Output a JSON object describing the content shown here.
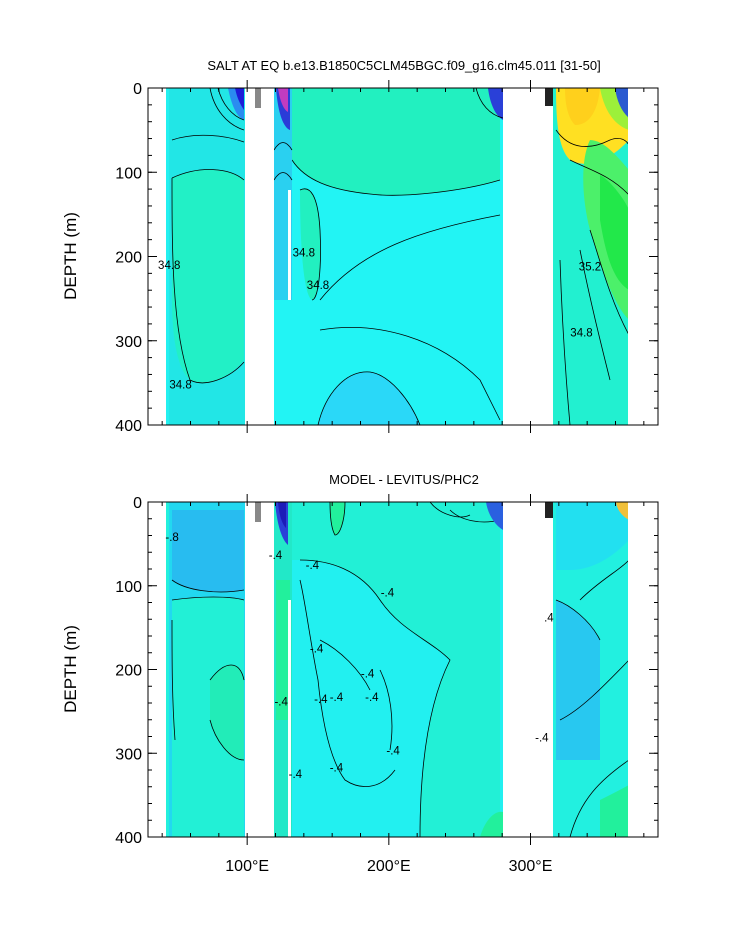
{
  "chart_data": [
    {
      "type": "heatmap",
      "title": "SALT AT EQ b.e13.B1850C5CLM45BGC.f09_g16.clm45.011 [31-50]",
      "xlabel": "",
      "ylabel": "DEPTH (m)",
      "xlim": [
        30,
        390
      ],
      "ylim": [
        400,
        0
      ],
      "x_ticks": [
        100,
        200,
        300
      ],
      "x_tick_labels": [
        "100°E",
        "200°E",
        "300°E"
      ],
      "y_ticks": [
        0,
        100,
        200,
        300,
        400
      ],
      "y_tick_labels": [
        "0",
        "100",
        "200",
        "300",
        "400"
      ],
      "contour_labels": [
        {
          "text": "34.8",
          "x": 45,
          "y": 210
        },
        {
          "text": "34.8",
          "x": 53,
          "y": 352
        },
        {
          "text": "34.8",
          "x": 140,
          "y": 195
        },
        {
          "text": "34.8",
          "x": 150,
          "y": 234
        },
        {
          "text": "35.2",
          "x": 342,
          "y": 212
        },
        {
          "text": "34.8",
          "x": 336,
          "y": 290
        }
      ],
      "colors": {
        "background": "#22e8e4",
        "low": "#1c1cf0",
        "high": "#ffdd22",
        "mid": "#22f0a0"
      }
    },
    {
      "type": "heatmap",
      "title": "MODEL - LEVITUS/PHC2",
      "xlabel": "",
      "ylabel": "DEPTH (m)",
      "xlim": [
        30,
        390
      ],
      "ylim": [
        400,
        0
      ],
      "x_ticks": [
        100,
        200,
        300
      ],
      "x_tick_labels": [
        "100°E",
        "200°E",
        "300°E"
      ],
      "y_ticks": [
        0,
        100,
        200,
        300,
        400
      ],
      "y_tick_labels": [
        "0",
        "100",
        "200",
        "300",
        "400"
      ],
      "contour_labels": [
        {
          "text": "-.8",
          "x": 47,
          "y": 42
        },
        {
          "text": "-.4",
          "x": 120,
          "y": 63
        },
        {
          "text": "-.4",
          "x": 146,
          "y": 75
        },
        {
          "text": "-.4",
          "x": 199,
          "y": 108
        },
        {
          "text": "-.4",
          "x": 149,
          "y": 175
        },
        {
          "text": "-.4",
          "x": 185,
          "y": 205
        },
        {
          "text": "-.4",
          "x": 124,
          "y": 238
        },
        {
          "text": "-.4",
          "x": 152,
          "y": 235
        },
        {
          "text": "-.4",
          "x": 163,
          "y": 233
        },
        {
          "text": "-.4",
          "x": 188,
          "y": 233
        },
        {
          "text": "-.4",
          "x": 134,
          "y": 325
        },
        {
          "text": "-.4",
          "x": 163,
          "y": 317
        },
        {
          "text": "-.4",
          "x": 203,
          "y": 297
        },
        {
          "text": ".4",
          "x": 313,
          "y": 138
        },
        {
          "text": "-.4",
          "x": 308,
          "y": 281
        }
      ],
      "colors": {
        "background": "#22f0dc",
        "low": "#2222ee",
        "mid": "#22f0a0"
      }
    }
  ]
}
